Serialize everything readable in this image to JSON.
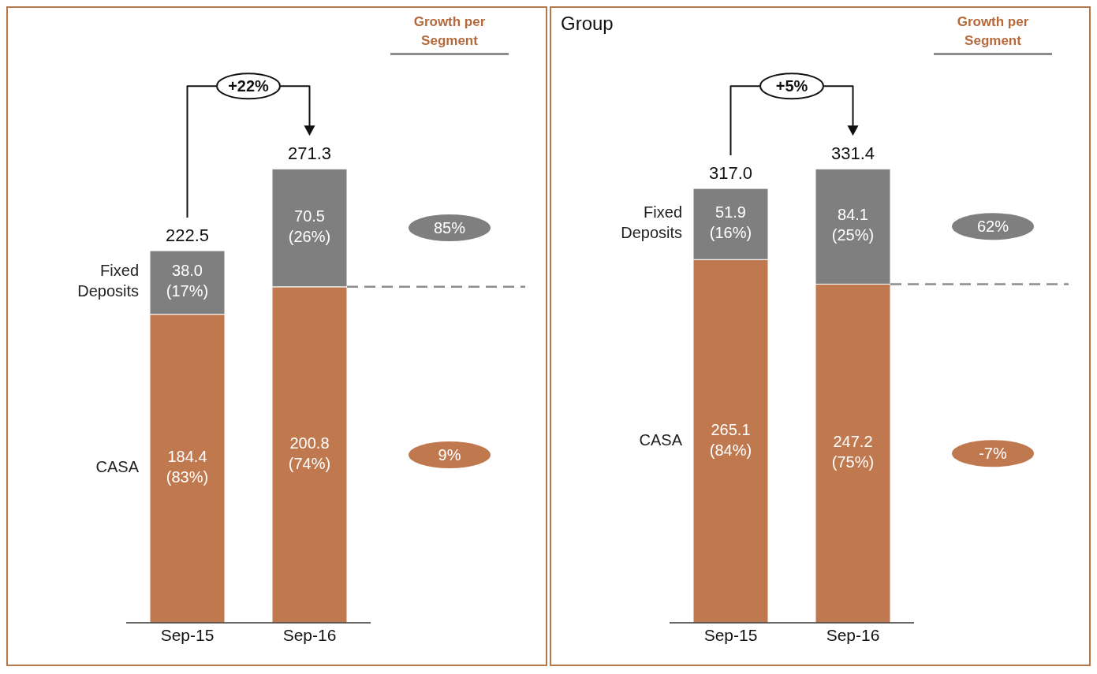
{
  "chart_data": [
    {
      "type": "bar",
      "stacked": true,
      "categories": [
        "Sep-15",
        "Sep-16"
      ],
      "series": [
        {
          "name": "CASA",
          "color": "#c0794f",
          "values": [
            184.4,
            200.8
          ],
          "value_labels": [
            "184.4 (83%)",
            "200.8 (74%)"
          ]
        },
        {
          "name": "Fixed Deposits",
          "color": "#7f7f7f",
          "values": [
            38.0,
            70.5
          ],
          "value_labels": [
            "38.0 (17%)",
            "70.5 (26%)"
          ]
        }
      ],
      "totals": [
        "222.5",
        "271.3"
      ],
      "annotations": [
        "Growth per Segment",
        "+22%",
        "85%",
        "9%"
      ],
      "ref_lines": [
        {
          "axis": "y",
          "value": 200.8,
          "label": null,
          "color": "#8c8c8c",
          "line_style": "dashed"
        }
      ]
    },
    {
      "type": "bar",
      "stacked": true,
      "title": "Group",
      "categories": [
        "Sep-15",
        "Sep-16"
      ],
      "series": [
        {
          "name": "CASA",
          "color": "#c0794f",
          "values": [
            265.1,
            247.2
          ],
          "value_labels": [
            "265.1 (84%)",
            "247.2 (75%)"
          ]
        },
        {
          "name": "Fixed Deposits",
          "color": "#7f7f7f",
          "values": [
            51.9,
            84.1
          ],
          "value_labels": [
            "51.9 (16%)",
            "84.1 (25%)"
          ]
        }
      ],
      "totals": [
        "317.0",
        "331.4"
      ],
      "annotations": [
        "Growth per Segment",
        "+5%",
        "62%",
        "-7%"
      ],
      "ref_lines": [
        {
          "axis": "y",
          "value": 247.2,
          "label": null,
          "color": "#8c8c8c",
          "line_style": "dashed"
        }
      ]
    }
  ]
}
